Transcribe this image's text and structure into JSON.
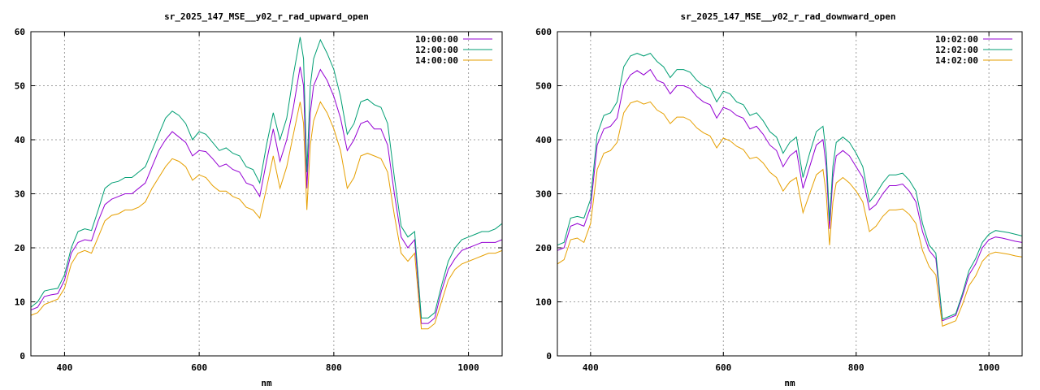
{
  "colors": {
    "s1": "#9400d3",
    "s2": "#009e73",
    "s3": "#e69f00"
  },
  "chart_data": [
    {
      "type": "line",
      "title": "sr_2025_147_MSE__y02_r_rad_upward_open",
      "xlabel": "nm",
      "ylabel": "",
      "xlim": [
        350,
        1050
      ],
      "ylim": [
        0,
        60
      ],
      "xticks": [
        400,
        600,
        800,
        1000
      ],
      "yticks": [
        0,
        10,
        20,
        30,
        40,
        50,
        60
      ],
      "grid": true,
      "legend": "top-right",
      "x": [
        350,
        360,
        370,
        380,
        390,
        400,
        410,
        420,
        430,
        440,
        450,
        460,
        470,
        480,
        490,
        500,
        510,
        520,
        530,
        540,
        550,
        560,
        570,
        580,
        590,
        600,
        610,
        620,
        630,
        640,
        650,
        660,
        670,
        680,
        690,
        700,
        710,
        720,
        730,
        740,
        750,
        755,
        760,
        765,
        770,
        780,
        790,
        800,
        810,
        820,
        830,
        840,
        850,
        860,
        870,
        880,
        890,
        900,
        910,
        920,
        930,
        940,
        950,
        960,
        970,
        980,
        990,
        1000,
        1010,
        1020,
        1030,
        1040,
        1050
      ],
      "series": [
        {
          "name": "10:00:00",
          "color": "#9400d3",
          "values": [
            8.5,
            9,
            11,
            11.3,
            11.5,
            14,
            19,
            21,
            21.5,
            21.3,
            25,
            28,
            29,
            29.5,
            30,
            30,
            31,
            32,
            35,
            38,
            40,
            41.5,
            40.5,
            39.5,
            37,
            38,
            37.8,
            36.5,
            35,
            35.5,
            34.5,
            34,
            32,
            31.5,
            29.5,
            36,
            42,
            36,
            40,
            46,
            53.5,
            50,
            31,
            45,
            50,
            53,
            51,
            48,
            44,
            38,
            40,
            43,
            43.5,
            42,
            42,
            39,
            30,
            22,
            20,
            21.5,
            6,
            6,
            7,
            12,
            16,
            18,
            19.5,
            20,
            20.5,
            21,
            21,
            21,
            21.5
          ]
        },
        {
          "name": "12:00:00",
          "color": "#009e73",
          "values": [
            9,
            10,
            12,
            12.3,
            12.5,
            15,
            20,
            23,
            23.5,
            23.2,
            27,
            31,
            32,
            32.3,
            33,
            33,
            34,
            35,
            38,
            41,
            44,
            45.3,
            44.5,
            43,
            40,
            41.5,
            41,
            39.5,
            38,
            38.5,
            37.5,
            37,
            35,
            34.5,
            32,
            39,
            45,
            40,
            44,
            52,
            59,
            55,
            34,
            50,
            55,
            58.5,
            56,
            53,
            48,
            41,
            43,
            47,
            47.5,
            46.5,
            46,
            43,
            33,
            24,
            22,
            23,
            7,
            7,
            8,
            13,
            17.5,
            20,
            21.5,
            22,
            22.5,
            23,
            23,
            23.5,
            24.5
          ]
        },
        {
          "name": "14:00:00",
          "color": "#e69f00",
          "values": [
            7.5,
            8,
            9.5,
            10,
            10.5,
            12.5,
            17,
            19,
            19.5,
            19,
            22,
            25,
            26,
            26.3,
            27,
            27,
            27.5,
            28.5,
            31,
            33,
            35,
            36.5,
            36,
            35,
            32.5,
            33.5,
            33,
            31.5,
            30.5,
            30.5,
            29.5,
            29,
            27.5,
            27,
            25.5,
            31,
            37,
            31,
            35,
            41,
            47,
            43,
            27,
            39,
            43.5,
            47,
            45,
            42,
            38,
            31,
            33,
            37,
            37.5,
            37,
            36.5,
            34,
            26,
            19,
            17.5,
            19,
            5,
            5,
            6,
            10,
            14,
            16,
            17,
            17.5,
            18,
            18.5,
            19,
            19,
            19.5
          ]
        }
      ]
    },
    {
      "type": "line",
      "title": "sr_2025_147_MSE__y02_r_rad_downward_open",
      "xlabel": "nm",
      "ylabel": "",
      "xlim": [
        350,
        1050
      ],
      "ylim": [
        0,
        600
      ],
      "xticks": [
        400,
        600,
        800,
        1000
      ],
      "yticks": [
        0,
        100,
        200,
        300,
        400,
        500,
        600
      ],
      "grid": true,
      "legend": "top-right",
      "x": [
        350,
        360,
        370,
        380,
        390,
        400,
        410,
        420,
        430,
        440,
        450,
        460,
        470,
        480,
        490,
        500,
        510,
        520,
        530,
        540,
        550,
        560,
        570,
        580,
        590,
        600,
        610,
        620,
        630,
        640,
        650,
        660,
        670,
        680,
        690,
        700,
        710,
        720,
        730,
        740,
        750,
        755,
        760,
        765,
        770,
        780,
        790,
        800,
        810,
        820,
        830,
        840,
        850,
        860,
        870,
        880,
        890,
        900,
        910,
        920,
        930,
        940,
        950,
        960,
        970,
        980,
        990,
        1000,
        1010,
        1020,
        1030,
        1040,
        1050
      ],
      "series": [
        {
          "name": "10:02:00",
          "color": "#9400d3",
          "values": [
            195,
            200,
            240,
            245,
            240,
            275,
            390,
            420,
            425,
            440,
            500,
            520,
            528,
            520,
            530,
            510,
            505,
            485,
            500,
            500,
            495,
            480,
            470,
            465,
            440,
            460,
            455,
            445,
            440,
            420,
            425,
            410,
            390,
            380,
            350,
            370,
            380,
            310,
            350,
            390,
            400,
            350,
            235,
            330,
            370,
            380,
            370,
            350,
            330,
            270,
            280,
            300,
            315,
            315,
            318,
            305,
            285,
            230,
            195,
            180,
            65,
            70,
            75,
            110,
            150,
            170,
            200,
            215,
            220,
            218,
            215,
            212,
            210
          ]
        },
        {
          "name": "12:02:00",
          "color": "#009e73",
          "values": [
            205,
            210,
            255,
            258,
            255,
            290,
            410,
            445,
            450,
            470,
            535,
            555,
            560,
            555,
            560,
            545,
            535,
            515,
            530,
            530,
            525,
            510,
            500,
            495,
            470,
            490,
            485,
            470,
            465,
            445,
            450,
            435,
            415,
            405,
            375,
            395,
            405,
            330,
            375,
            415,
            425,
            375,
            250,
            350,
            395,
            405,
            395,
            375,
            350,
            285,
            300,
            320,
            335,
            335,
            338,
            325,
            305,
            245,
            205,
            190,
            68,
            73,
            78,
            115,
            158,
            180,
            210,
            225,
            232,
            230,
            228,
            225,
            222
          ]
        },
        {
          "name": "14:02:00",
          "color": "#e69f00",
          "values": [
            170,
            178,
            215,
            218,
            210,
            245,
            345,
            375,
            380,
            395,
            450,
            468,
            472,
            466,
            470,
            455,
            448,
            430,
            442,
            442,
            436,
            422,
            413,
            407,
            385,
            403,
            398,
            388,
            382,
            365,
            368,
            357,
            340,
            330,
            305,
            322,
            330,
            265,
            300,
            335,
            345,
            300,
            205,
            285,
            320,
            330,
            320,
            305,
            285,
            230,
            240,
            258,
            270,
            270,
            272,
            262,
            245,
            195,
            165,
            150,
            55,
            60,
            65,
            95,
            130,
            148,
            175,
            188,
            192,
            190,
            188,
            185,
            183
          ]
        }
      ]
    }
  ]
}
